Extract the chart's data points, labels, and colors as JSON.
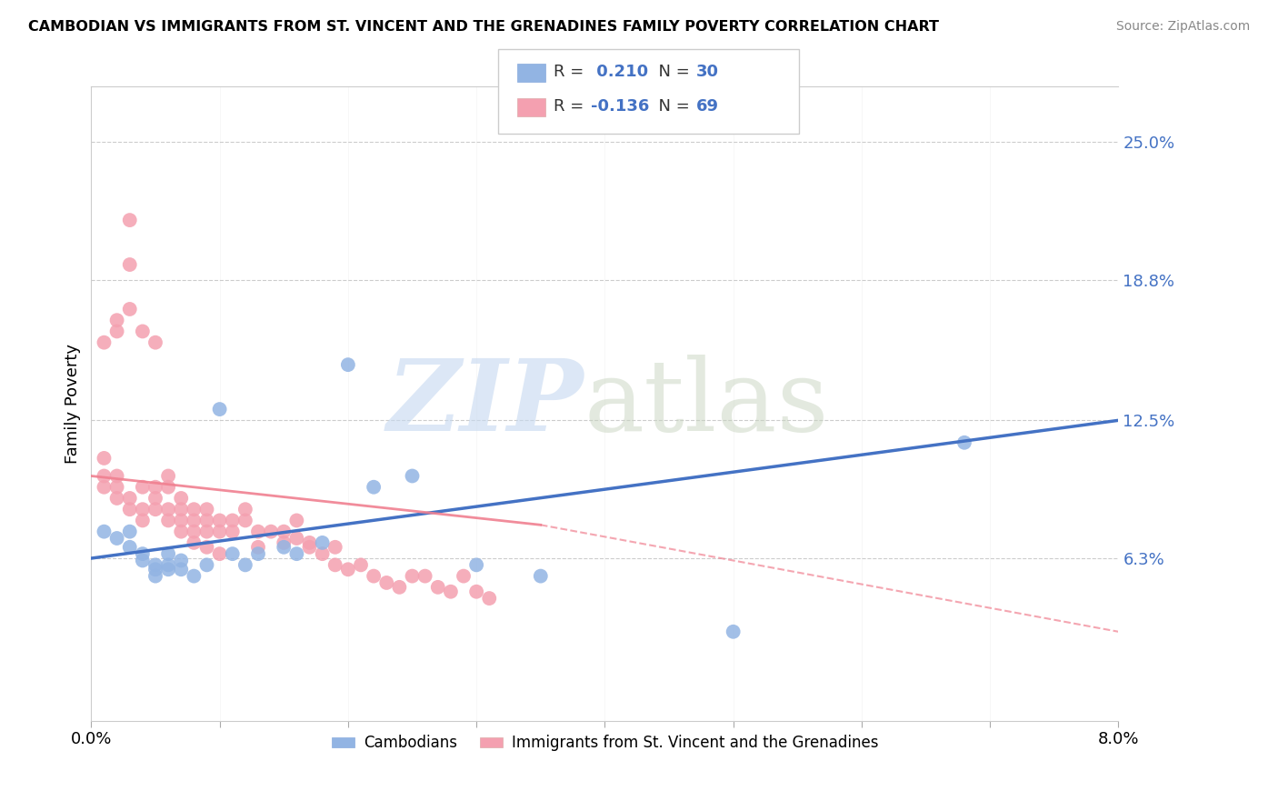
{
  "title": "CAMBODIAN VS IMMIGRANTS FROM ST. VINCENT AND THE GRENADINES FAMILY POVERTY CORRELATION CHART",
  "source": "Source: ZipAtlas.com",
  "ylabel": "Family Poverty",
  "ytick_labels": [
    "25.0%",
    "18.8%",
    "12.5%",
    "6.3%"
  ],
  "ytick_values": [
    0.25,
    0.188,
    0.125,
    0.063
  ],
  "xlim": [
    0.0,
    0.08
  ],
  "ylim": [
    -0.01,
    0.275
  ],
  "r_cambodian": 0.21,
  "n_cambodian": 30,
  "r_svg": -0.136,
  "n_svg": 69,
  "color_cambodian": "#92b4e3",
  "color_svg": "#f4a0b0",
  "line_color_cambodian": "#4472c4",
  "line_color_svg": "#f08090",
  "cambodian_x": [
    0.001,
    0.002,
    0.003,
    0.003,
    0.004,
    0.004,
    0.005,
    0.005,
    0.005,
    0.006,
    0.006,
    0.006,
    0.007,
    0.007,
    0.008,
    0.009,
    0.01,
    0.011,
    0.012,
    0.013,
    0.015,
    0.016,
    0.018,
    0.02,
    0.022,
    0.025,
    0.03,
    0.035,
    0.05,
    0.068
  ],
  "cambodian_y": [
    0.075,
    0.072,
    0.068,
    0.075,
    0.065,
    0.062,
    0.06,
    0.058,
    0.055,
    0.058,
    0.06,
    0.065,
    0.062,
    0.058,
    0.055,
    0.06,
    0.13,
    0.065,
    0.06,
    0.065,
    0.068,
    0.065,
    0.07,
    0.15,
    0.095,
    0.1,
    0.06,
    0.055,
    0.03,
    0.115
  ],
  "svg_x": [
    0.001,
    0.001,
    0.001,
    0.001,
    0.002,
    0.002,
    0.002,
    0.002,
    0.002,
    0.003,
    0.003,
    0.003,
    0.003,
    0.003,
    0.004,
    0.004,
    0.004,
    0.004,
    0.005,
    0.005,
    0.005,
    0.005,
    0.006,
    0.006,
    0.006,
    0.006,
    0.007,
    0.007,
    0.007,
    0.007,
    0.008,
    0.008,
    0.008,
    0.008,
    0.009,
    0.009,
    0.009,
    0.009,
    0.01,
    0.01,
    0.01,
    0.011,
    0.011,
    0.012,
    0.012,
    0.013,
    0.013,
    0.014,
    0.015,
    0.015,
    0.016,
    0.016,
    0.017,
    0.017,
    0.018,
    0.019,
    0.019,
    0.02,
    0.021,
    0.022,
    0.023,
    0.024,
    0.025,
    0.026,
    0.027,
    0.028,
    0.029,
    0.03,
    0.031
  ],
  "svg_y": [
    0.095,
    0.1,
    0.108,
    0.16,
    0.165,
    0.17,
    0.095,
    0.09,
    0.1,
    0.175,
    0.195,
    0.215,
    0.09,
    0.085,
    0.165,
    0.095,
    0.085,
    0.08,
    0.16,
    0.095,
    0.09,
    0.085,
    0.1,
    0.095,
    0.085,
    0.08,
    0.09,
    0.085,
    0.08,
    0.075,
    0.085,
    0.08,
    0.075,
    0.07,
    0.085,
    0.08,
    0.075,
    0.068,
    0.08,
    0.075,
    0.065,
    0.08,
    0.075,
    0.085,
    0.08,
    0.075,
    0.068,
    0.075,
    0.075,
    0.07,
    0.08,
    0.072,
    0.07,
    0.068,
    0.065,
    0.068,
    0.06,
    0.058,
    0.06,
    0.055,
    0.052,
    0.05,
    0.055,
    0.055,
    0.05,
    0.048,
    0.055,
    0.048,
    0.045
  ]
}
